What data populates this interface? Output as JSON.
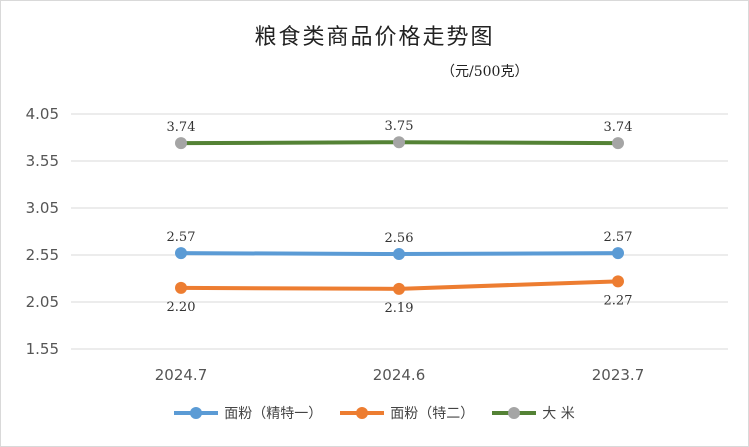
{
  "chart_data": {
    "type": "line",
    "title": "粮食类商品价格走势图",
    "subtitle": "（元/500克）",
    "categories": [
      "2024.7",
      "2024.6",
      "2023.7"
    ],
    "yticks": [
      "4.05",
      "3.55",
      "3.05",
      "2.55",
      "2.05",
      "1.55"
    ],
    "ylim": [
      1.55,
      4.05
    ],
    "grid": true,
    "legend_position": "bottom",
    "series": [
      {
        "name": "面粉（精特一）",
        "values": [
          2.57,
          2.56,
          2.57
        ],
        "labels": [
          "2.57",
          "2.56",
          "2.57"
        ],
        "color": "#5b9bd5",
        "label_pos": "above"
      },
      {
        "name": "面粉（特二）",
        "values": [
          2.2,
          2.19,
          2.27
        ],
        "labels": [
          "2.20",
          "2.19",
          "2.27"
        ],
        "color": "#ed7d31",
        "label_pos": "below"
      },
      {
        "name": "大  米",
        "values": [
          3.74,
          3.75,
          3.74
        ],
        "labels": [
          "3.74",
          "3.75",
          "3.74"
        ],
        "color": "#548235",
        "marker_color": "#a5a5a5",
        "label_pos": "above"
      }
    ]
  }
}
